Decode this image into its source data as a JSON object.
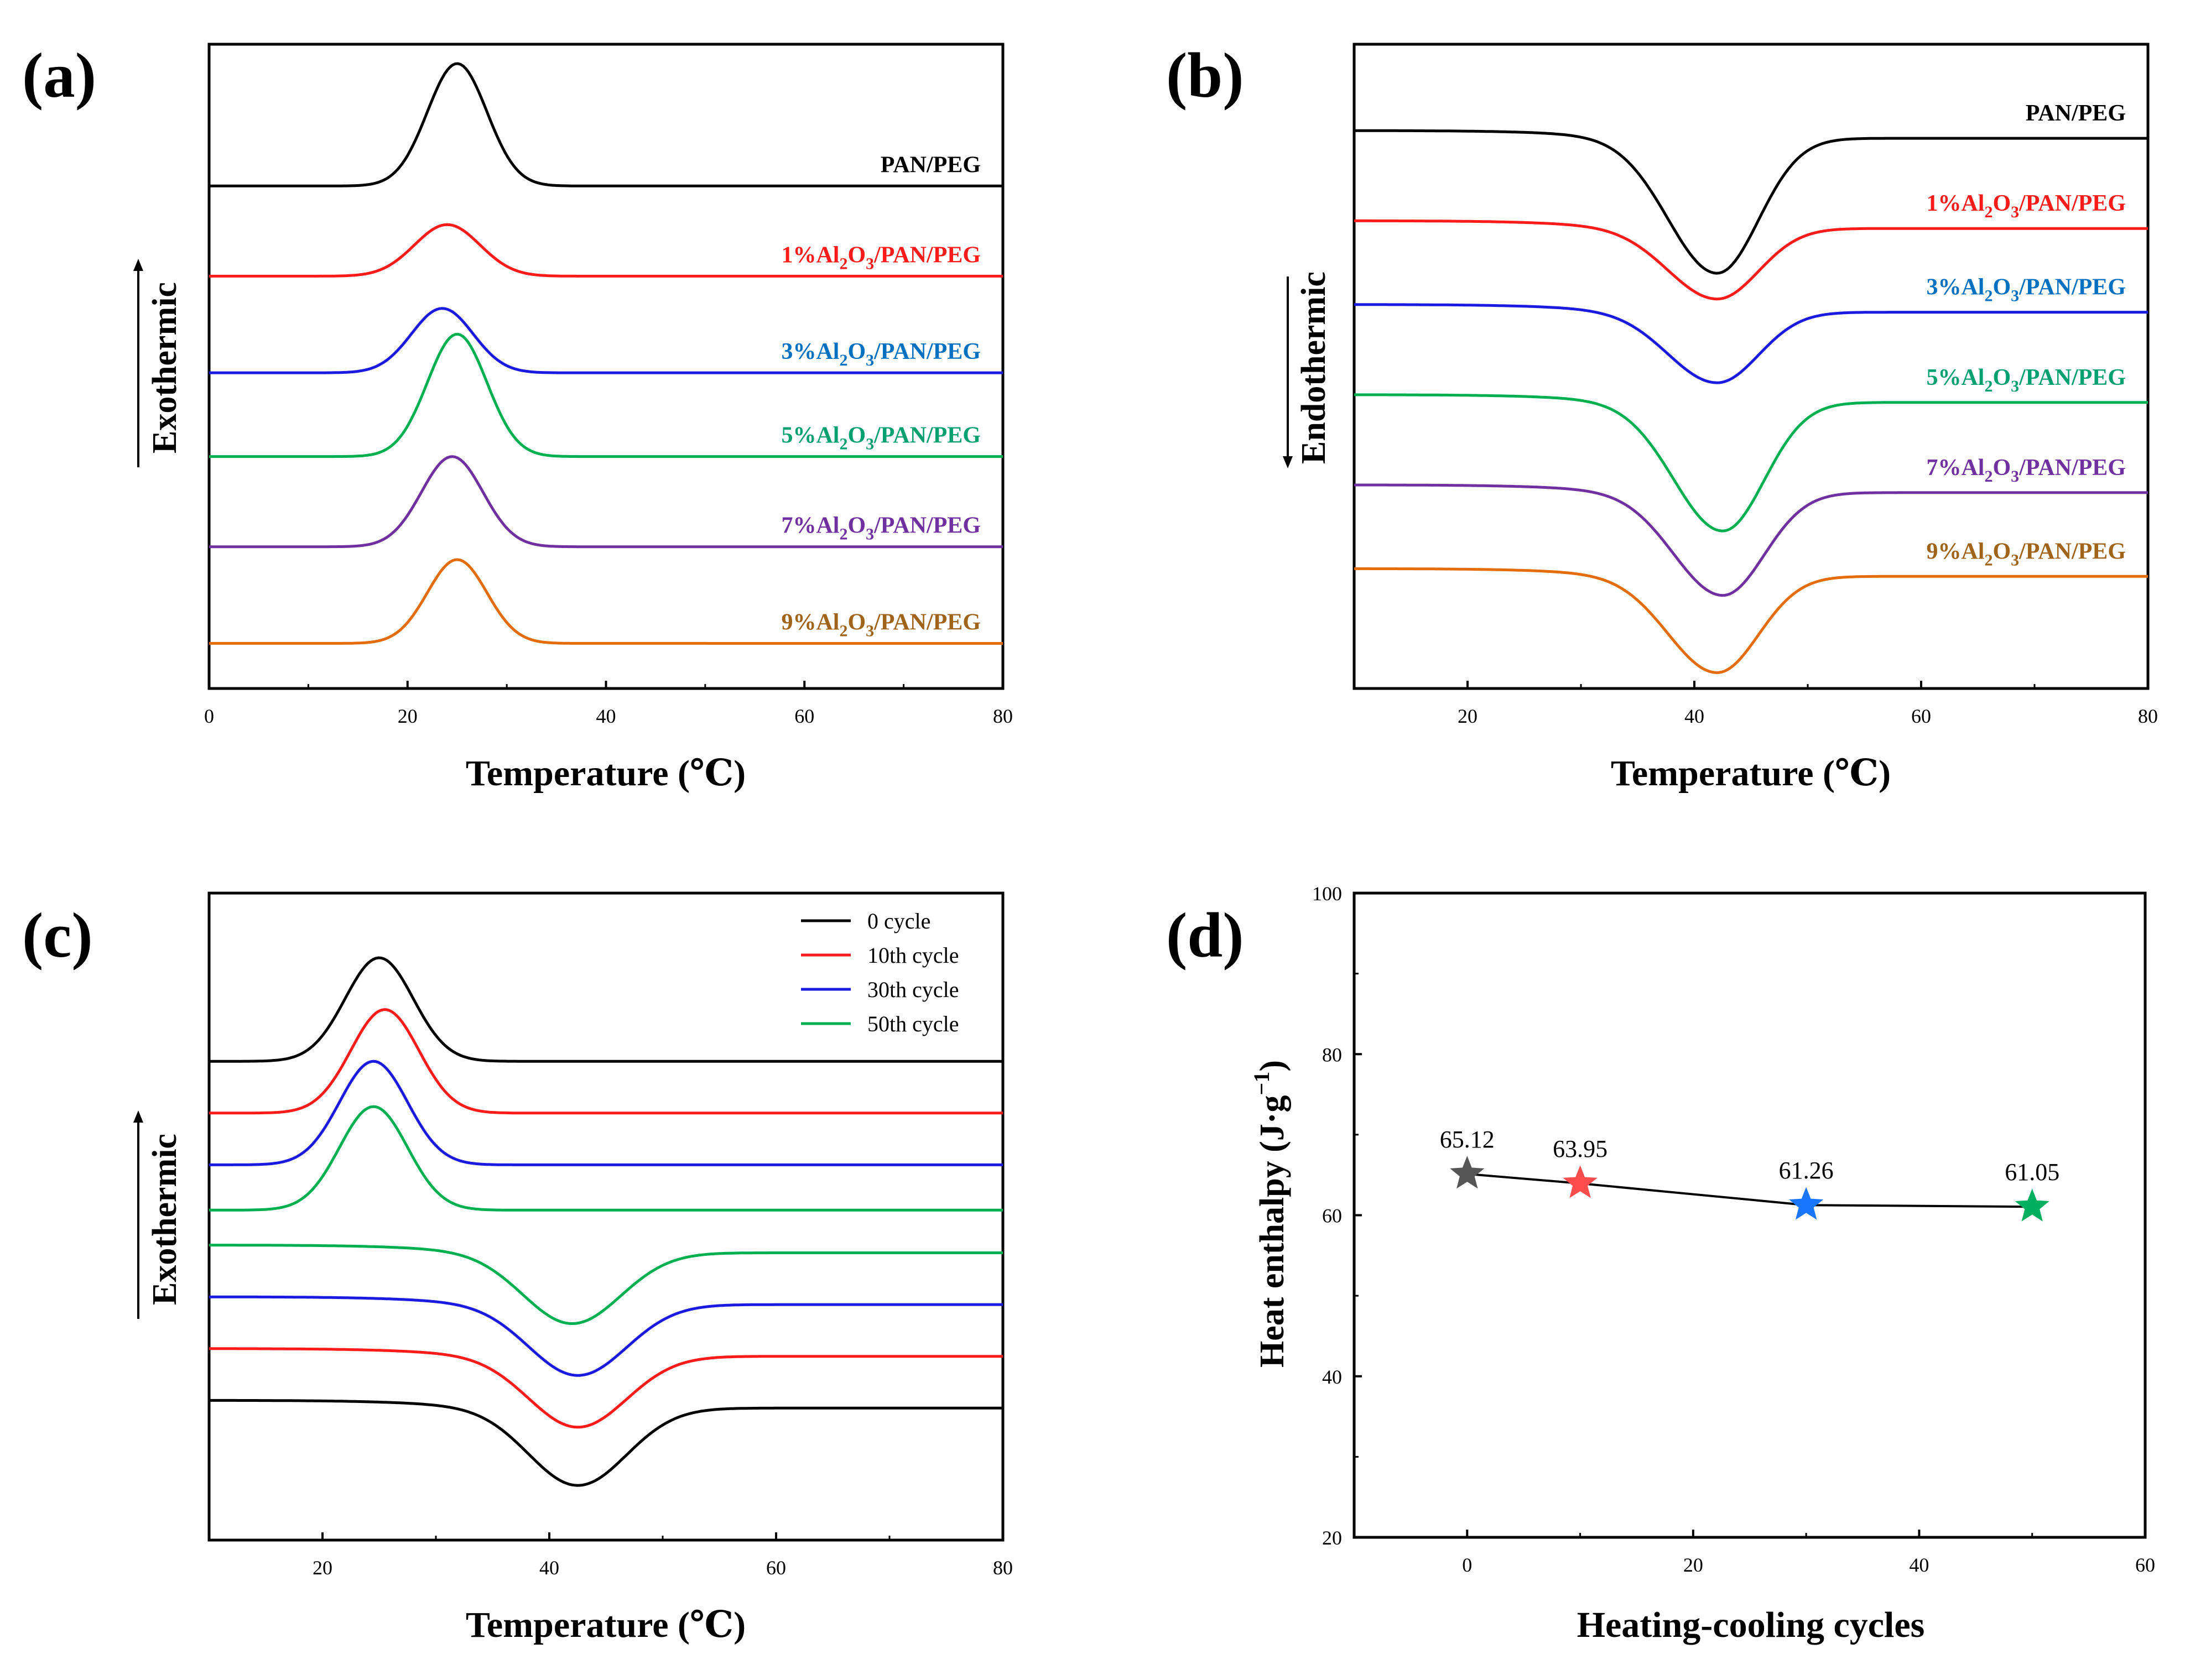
{
  "colors": {
    "black": "#000000",
    "red": "#ff1a1a",
    "blue": "#1a1ae0",
    "cyanblue": "#0070c0",
    "green": "#00b050",
    "teal": "#00a070",
    "purple": "#7030a0",
    "brown": "#a0631a",
    "orange": "#e46c0a",
    "gray": "#555555",
    "star_red": "#ff4d4d",
    "star_blue": "#1a75ff",
    "star_green": "#00b060"
  },
  "chart_data": [
    {
      "id": "a",
      "panel_label": "(a)",
      "type": "line",
      "xlabel": "Temperature (℃)",
      "ylabel": "Exothermic",
      "xlim": [
        0,
        80
      ],
      "xticks": [
        "0",
        "20",
        "40",
        "60",
        "80"
      ],
      "xtick_values": [
        0,
        20,
        40,
        60,
        80
      ],
      "series": [
        {
          "name": "PAN/PEG",
          "prefix": "",
          "sub1": "",
          "mid": "",
          "sub2": "",
          "suffix": "PAN/PEG",
          "color": "#000000",
          "label_color": "#000000",
          "baseline": 0.78,
          "peak_x": 25.0,
          "peak_h": 0.19,
          "width": 3.0
        },
        {
          "name": "1%Al2O3/PAN/PEG",
          "prefix": "1%Al",
          "sub1": "2",
          "mid": "O",
          "sub2": "3",
          "suffix": "/PAN/PEG",
          "color": "#ff1a1a",
          "label_color": "#ff1a1a",
          "baseline": 0.64,
          "peak_x": 24.0,
          "peak_h": 0.08,
          "width": 3.3
        },
        {
          "name": "3%Al2O3/PAN/PEG",
          "prefix": "3%Al",
          "sub1": "2",
          "mid": "O",
          "sub2": "3",
          "suffix": "/PAN/PEG",
          "color": "#1a1ae0",
          "label_color": "#0070c0",
          "baseline": 0.49,
          "peak_x": 23.5,
          "peak_h": 0.1,
          "width": 3.1
        },
        {
          "name": "5%Al2O3/PAN/PEG",
          "prefix": "5%Al",
          "sub1": "2",
          "mid": "O",
          "sub2": "3",
          "suffix": "/PAN/PEG",
          "color": "#00b050",
          "label_color": "#00a070",
          "baseline": 0.36,
          "peak_x": 25.0,
          "peak_h": 0.19,
          "width": 3.0
        },
        {
          "name": "7%Al2O3/PAN/PEG",
          "prefix": "7%Al",
          "sub1": "2",
          "mid": "O",
          "sub2": "3",
          "suffix": "/PAN/PEG",
          "color": "#7030a0",
          "label_color": "#7030a0",
          "baseline": 0.22,
          "peak_x": 24.5,
          "peak_h": 0.14,
          "width": 3.1
        },
        {
          "name": "9%Al2O3/PAN/PEG",
          "prefix": "9%Al",
          "sub1": "2",
          "mid": "O",
          "sub2": "3",
          "suffix": "/PAN/PEG",
          "color": "#e46c0a",
          "label_color": "#a0631a",
          "baseline": 0.07,
          "peak_x": 25.0,
          "peak_h": 0.13,
          "width": 3.0
        }
      ]
    },
    {
      "id": "b",
      "panel_label": "(b)",
      "type": "line",
      "xlabel": "Temperature (℃)",
      "ylabel": "Endothermic",
      "xlim": [
        10,
        80
      ],
      "xticks": [
        "20",
        "40",
        "60",
        "80"
      ],
      "xtick_values": [
        20,
        40,
        60,
        80
      ],
      "series": [
        {
          "name": "PAN/PEG",
          "prefix": "",
          "sub1": "",
          "mid": "",
          "sub2": "",
          "suffix": "PAN/PEG",
          "color": "#000000",
          "label_color": "#000000",
          "baseline": 0.86,
          "peak_x": 42.0,
          "peak_h": -0.21,
          "width": 4.3
        },
        {
          "name": "1%Al2O3/PAN/PEG",
          "prefix": "1%Al",
          "sub1": "2",
          "mid": "O",
          "sub2": "3",
          "suffix": "/PAN/PEG",
          "color": "#ff1a1a",
          "label_color": "#ff1a1a",
          "baseline": 0.72,
          "peak_x": 42.0,
          "peak_h": -0.11,
          "width": 4.3
        },
        {
          "name": "3%Al2O3/PAN/PEG",
          "prefix": "3%Al",
          "sub1": "2",
          "mid": "O",
          "sub2": "3",
          "suffix": "/PAN/PEG",
          "color": "#1a1ae0",
          "label_color": "#0070c0",
          "baseline": 0.59,
          "peak_x": 42.0,
          "peak_h": -0.11,
          "width": 4.3
        },
        {
          "name": "5%Al2O3/PAN/PEG",
          "prefix": "5%Al",
          "sub1": "2",
          "mid": "O",
          "sub2": "3",
          "suffix": "/PAN/PEG",
          "color": "#00b050",
          "label_color": "#00a070",
          "baseline": 0.45,
          "peak_x": 42.5,
          "peak_h": -0.2,
          "width": 4.3
        },
        {
          "name": "7%Al2O3/PAN/PEG",
          "prefix": "7%Al",
          "sub1": "2",
          "mid": "O",
          "sub2": "3",
          "suffix": "/PAN/PEG",
          "color": "#7030a0",
          "label_color": "#7030a0",
          "baseline": 0.31,
          "peak_x": 42.5,
          "peak_h": -0.16,
          "width": 4.3
        },
        {
          "name": "9%Al2O3/PAN/PEG",
          "prefix": "9%Al",
          "sub1": "2",
          "mid": "O",
          "sub2": "3",
          "suffix": "/PAN/PEG",
          "color": "#e46c0a",
          "label_color": "#a0631a",
          "baseline": 0.18,
          "peak_x": 42.0,
          "peak_h": -0.15,
          "width": 4.3
        }
      ]
    },
    {
      "id": "c",
      "panel_label": "(c)",
      "type": "line",
      "xlabel": "Temperature (℃)",
      "ylabel": "Exothermic",
      "xlim": [
        10,
        80
      ],
      "xticks": [
        "20",
        "40",
        "60",
        "80"
      ],
      "xtick_values": [
        20,
        40,
        60,
        80
      ],
      "legend": [
        "0 cycle",
        "10th cycle",
        "30th cycle",
        "50th cycle"
      ],
      "legend_colors": [
        "#000000",
        "#ff1a1a",
        "#1a1ae0",
        "#00b050"
      ],
      "series": [
        {
          "name": "0 cycle exo",
          "color": "#000000",
          "baseline": 0.74,
          "peak_x": 25.0,
          "peak_h": 0.16,
          "width": 3.0
        },
        {
          "name": "10th cycle exo",
          "color": "#ff1a1a",
          "baseline": 0.66,
          "peak_x": 25.5,
          "peak_h": 0.16,
          "width": 3.0
        },
        {
          "name": "30th cycle exo",
          "color": "#1a1ae0",
          "baseline": 0.58,
          "peak_x": 24.5,
          "peak_h": 0.16,
          "width": 3.0
        },
        {
          "name": "50th cycle exo",
          "color": "#00b050",
          "baseline": 0.51,
          "peak_x": 24.5,
          "peak_h": 0.16,
          "width": 3.0
        },
        {
          "name": "50th cycle endo",
          "color": "#00b050",
          "baseline": 0.45,
          "peak_x": 42.0,
          "peak_h": -0.11,
          "width": 4.3
        },
        {
          "name": "30th cycle endo",
          "color": "#1a1ae0",
          "baseline": 0.37,
          "peak_x": 42.5,
          "peak_h": -0.11,
          "width": 4.3
        },
        {
          "name": "10th cycle endo",
          "color": "#ff1a1a",
          "baseline": 0.29,
          "peak_x": 42.5,
          "peak_h": -0.11,
          "width": 4.3
        },
        {
          "name": "0 cycle endo",
          "color": "#000000",
          "baseline": 0.21,
          "peak_x": 42.5,
          "peak_h": -0.12,
          "width": 4.3
        }
      ]
    },
    {
      "id": "d",
      "panel_label": "(d)",
      "type": "scatter",
      "xlabel": "Heating-cooling cycles",
      "ylabel": "Heat enthalpy (J·g",
      "ylabel_sup": "−1",
      "ylabel_close": ")",
      "xlim": [
        -10,
        60
      ],
      "ylim": [
        20,
        100
      ],
      "xticks": [
        "0",
        "20",
        "40",
        "60"
      ],
      "xtick_values": [
        0,
        20,
        40,
        60
      ],
      "yticks": [
        "20",
        "40",
        "60",
        "80",
        "100"
      ],
      "ytick_values": [
        20,
        40,
        60,
        80,
        100
      ],
      "x": [
        0,
        10,
        30,
        50
      ],
      "y": [
        65.12,
        63.95,
        61.26,
        61.05
      ],
      "data_labels": [
        "65.12",
        "63.95",
        "61.26",
        "61.05"
      ],
      "marker_colors": [
        "#555555",
        "#ff4d4d",
        "#1a75ff",
        "#00b060"
      ]
    }
  ]
}
